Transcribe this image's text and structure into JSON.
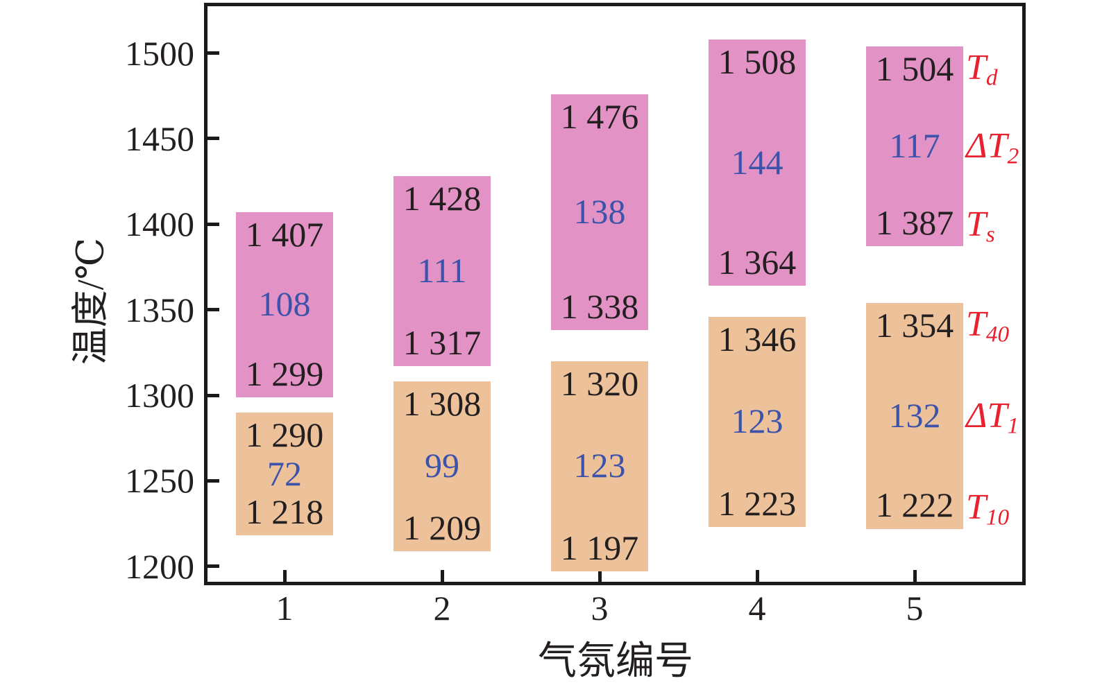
{
  "chart_data": {
    "type": "bar",
    "subtype": "floating-range-bars",
    "title": "",
    "xlabel": "气氛编号",
    "ylabel": "温度/℃",
    "x_categories": [
      "1",
      "2",
      "3",
      "4",
      "5"
    ],
    "yticks": [
      1200,
      1250,
      1300,
      1350,
      1400,
      1450,
      1500
    ],
    "ylim": [
      1191,
      1527.4
    ],
    "grid": false,
    "series": [
      {
        "name": "T10-T40",
        "color": "#edc29a",
        "low": [
          1218,
          1209,
          1197,
          1223,
          1222
        ],
        "high": [
          1290,
          1308,
          1320,
          1346,
          1354
        ],
        "delta": [
          72,
          99,
          123,
          123,
          132
        ],
        "low_display": [
          "1 218",
          "1 209",
          "1 197",
          "1 223",
          "1 222"
        ],
        "high_display": [
          "1 290",
          "1 308",
          "1 320",
          "1 346",
          "1 354"
        ]
      },
      {
        "name": "Ts-Td",
        "color": "#e292c4",
        "low": [
          1299,
          1317,
          1338,
          1364,
          1387
        ],
        "high": [
          1407,
          1428,
          1476,
          1508,
          1504
        ],
        "delta": [
          108,
          111,
          138,
          144,
          117
        ],
        "low_display": [
          "1 299",
          "1 317",
          "1 338",
          "1 364",
          "1 387"
        ],
        "high_display": [
          "1 407",
          "1 428",
          "1 476",
          "1 508",
          "1 504"
        ]
      }
    ],
    "right_labels": [
      {
        "id": "Td",
        "main": "T",
        "sub": "d",
        "series": 1,
        "row": "top"
      },
      {
        "id": "dT2",
        "main": "ΔT",
        "sub": "2",
        "series": 1,
        "row": "mid"
      },
      {
        "id": "Ts",
        "main": "T",
        "sub": "s",
        "series": 1,
        "row": "bottom"
      },
      {
        "id": "T40",
        "main": "T",
        "sub": "40",
        "series": 0,
        "row": "top"
      },
      {
        "id": "dT1",
        "main": "ΔT",
        "sub": "1",
        "series": 0,
        "row": "mid"
      },
      {
        "id": "T10",
        "main": "T",
        "sub": "10",
        "series": 0,
        "row": "bottom"
      }
    ],
    "colors": {
      "value_text": "#231f20",
      "delta_text": "#3b53ab",
      "right_label_text": "#e8212e",
      "axis": "#1a1a1a",
      "background": "#ffffff"
    }
  }
}
